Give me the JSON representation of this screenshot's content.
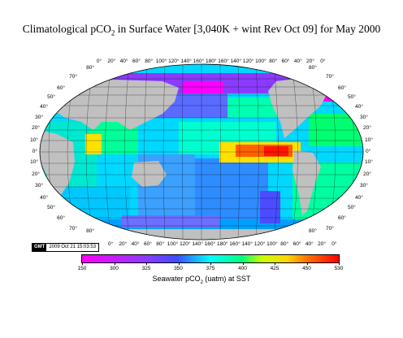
{
  "title": {
    "prefix": "Climatological pCO",
    "sub": "2",
    "suffix": " in Surface Water [3,040K + wint Rev Oct 09] for May 2000"
  },
  "map": {
    "lon_labels": [
      "0°",
      "20°",
      "40°",
      "60°",
      "80°",
      "100°",
      "120°",
      "140°",
      "160°",
      "180°",
      "160°",
      "140°",
      "120°",
      "100°",
      "80°",
      "60°",
      "40°",
      "20°",
      "0°"
    ],
    "lat_labels": [
      "80°",
      "70°",
      "60°",
      "50°",
      "40°",
      "30°",
      "20°",
      "10°",
      "0°",
      "10°",
      "20°",
      "30°",
      "40°",
      "50°",
      "60°",
      "70°",
      "80°"
    ],
    "land_color": "#c0c0c0",
    "ocean_default": "#00d8ff"
  },
  "stamp": {
    "badge": "GMT",
    "timestamp": "2009 Oct 21 15:03:53"
  },
  "colorbar": {
    "ticks": [
      "150",
      "300",
      "325",
      "350",
      "375",
      "400",
      "425",
      "450",
      "530"
    ],
    "label_prefix": "Seawater  pCO",
    "label_sub": "2",
    "label_suffix": " (uatm) at SST",
    "colors": [
      "#ff00ff",
      "#8b3bff",
      "#3b4dff",
      "#00ffff",
      "#00ff7f",
      "#c8ff00",
      "#ffd400",
      "#ff7a00",
      "#ff0000"
    ]
  }
}
